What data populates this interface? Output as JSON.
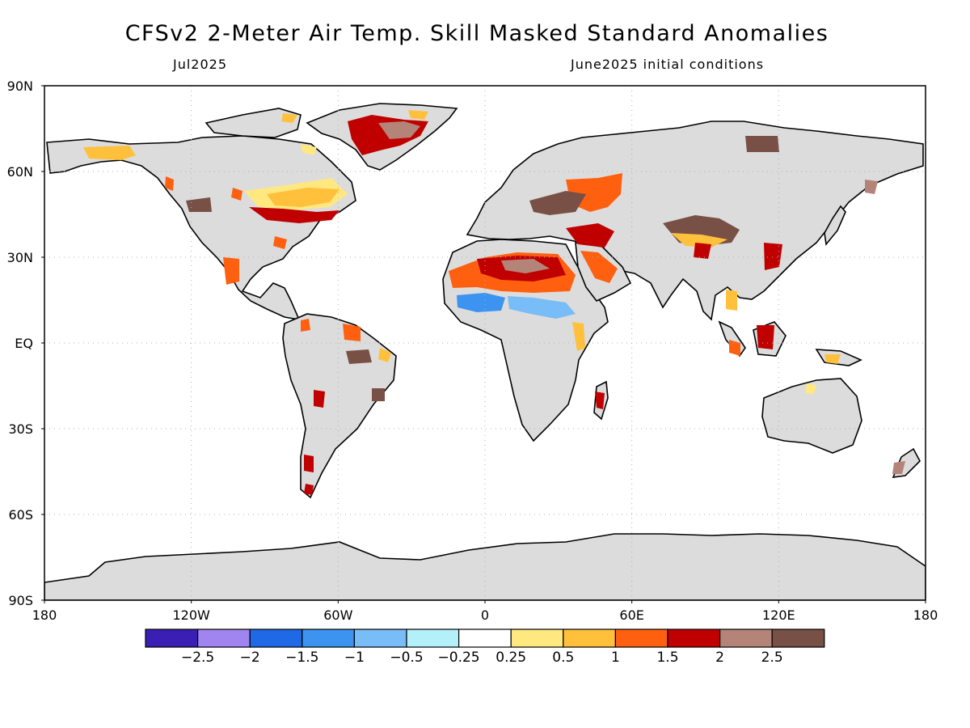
{
  "title": "CFSv2 2-Meter Air Temp. Skill Masked Standard Anomalies",
  "subtitle_left": "Jul2025",
  "subtitle_right": "June2025 initial conditions",
  "lat_labels": [
    "90N",
    "60N",
    "30N",
    "EQ",
    "30S",
    "60S",
    "90S"
  ],
  "lon_labels": [
    "180",
    "120W",
    "60W",
    "0",
    "60E",
    "120E",
    "180"
  ],
  "colorbar": {
    "colors": [
      "#3b1fb4",
      "#a084f0",
      "#1f68e6",
      "#3c94f0",
      "#78bcf8",
      "#b4f0fa",
      "#ffffff",
      "#ffe880",
      "#ffc03c",
      "#ff6010",
      "#c00000",
      "#b48478",
      "#785046"
    ],
    "labels": [
      "−2.5",
      "−2",
      "−1.5",
      "−1",
      "−0.5",
      "−0.25",
      "0.25",
      "0.5",
      "1",
      "1.5",
      "2",
      "2.5"
    ]
  },
  "colors": {
    "land": "#dcdcdc",
    "ocean": "#ffffff",
    "coast": "#000000",
    "grid": "#b0b0b0"
  }
}
